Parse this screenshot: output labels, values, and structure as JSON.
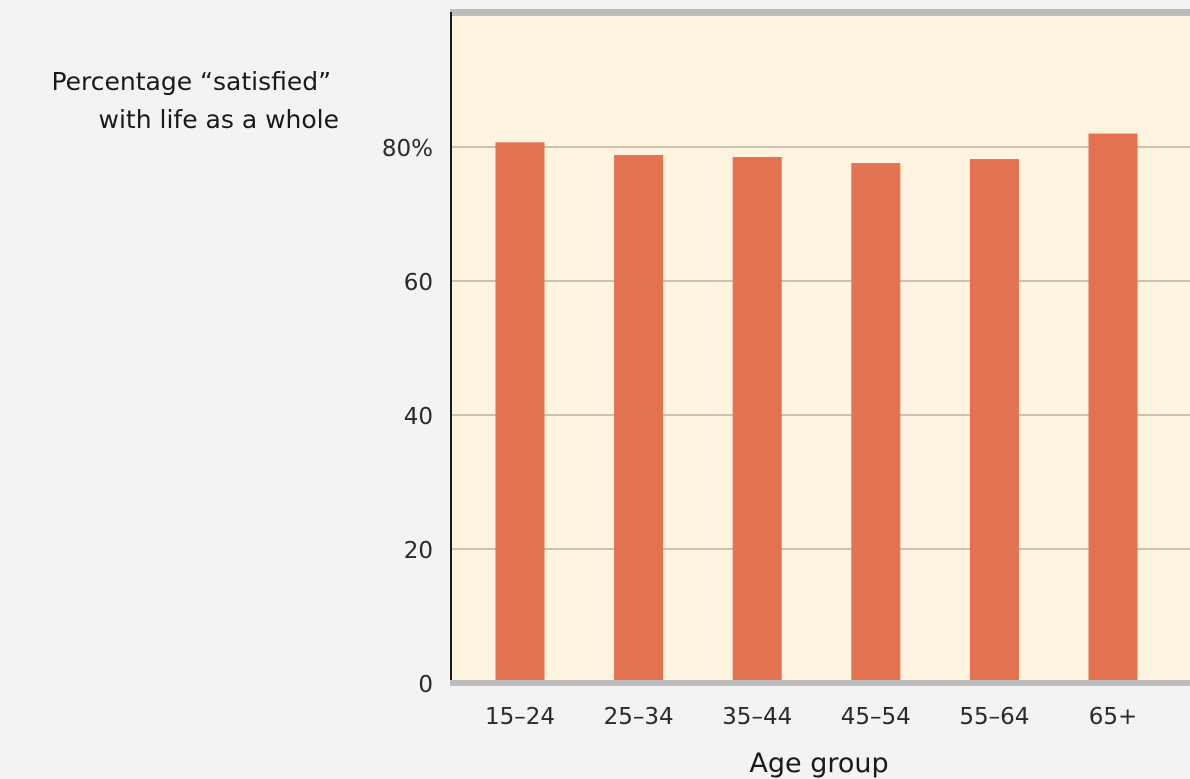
{
  "chart_data": {
    "type": "bar",
    "categories": [
      "15–24",
      "25–34",
      "35–44",
      "45–54",
      "55–64",
      "65+"
    ],
    "values": [
      80.7,
      78.8,
      78.5,
      77.6,
      78.2,
      82.0
    ],
    "ylabel": [
      "Percentage “satisfied”",
      "with life as a whole"
    ],
    "xlabel": "Age group",
    "ylim": [
      0,
      100
    ],
    "yticks": [
      {
        "value": 0,
        "label": "0"
      },
      {
        "value": 20,
        "label": "20"
      },
      {
        "value": 40,
        "label": "40"
      },
      {
        "value": 60,
        "label": "60"
      },
      {
        "value": 80,
        "label": "80%"
      }
    ],
    "grid": true,
    "colors": {
      "bar": "#e37250",
      "plot_background": "#fdf3df",
      "page_background": "#f3f3f3",
      "gridline": "#c9c2b3",
      "axis": "#1a1a1a",
      "frame": "#bcbcbc"
    }
  }
}
